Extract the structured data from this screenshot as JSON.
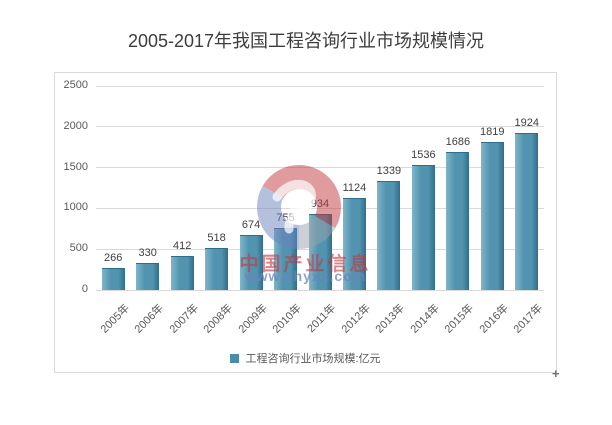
{
  "title": "2005-2017年我国工程咨询行业市场规模情况",
  "chart_data": {
    "type": "bar",
    "title": "2005-2017年我国工程咨询行业市场规模情况",
    "categories": [
      "2005年",
      "2006年",
      "2007年",
      "2008年",
      "2009年",
      "2010年",
      "2011年",
      "2012年",
      "2013年",
      "2014年",
      "2015年",
      "2016年",
      "2017年"
    ],
    "series": [
      {
        "name": "工程咨询行业市场规模:亿元",
        "values": [
          266,
          330,
          412,
          518,
          674,
          755,
          934,
          1124,
          1339,
          1536,
          1686,
          1819,
          1924
        ]
      }
    ],
    "xlabel": "",
    "ylabel": "",
    "ylim": [
      0,
      2500
    ],
    "yticks": [
      0,
      500,
      1000,
      1500,
      2000,
      2500
    ],
    "grid": true,
    "legend_position": "bottom",
    "bar_labels_shown": true
  },
  "legend": {
    "label": "工程咨询行业市场规模:亿元"
  },
  "watermark": {
    "line1": "中国产业信息",
    "line2": "www.chyxx.com"
  },
  "cursor_glyph": "+",
  "colors": {
    "bar_light": "#7fb6c9",
    "bar_mid": "#5294b0",
    "bar_dark": "#2f6d8c",
    "grid": "#d9d9d9",
    "axis_text": "#595959",
    "value_text": "#404040",
    "title_text": "#3d3d3d",
    "box_border": "#d9d9d9",
    "legend_swatch": "#4d8bab",
    "watermark_red": "#c23a40",
    "watermark_blue": "#6e82ba",
    "watermark_gray": "#9aa2ab"
  }
}
